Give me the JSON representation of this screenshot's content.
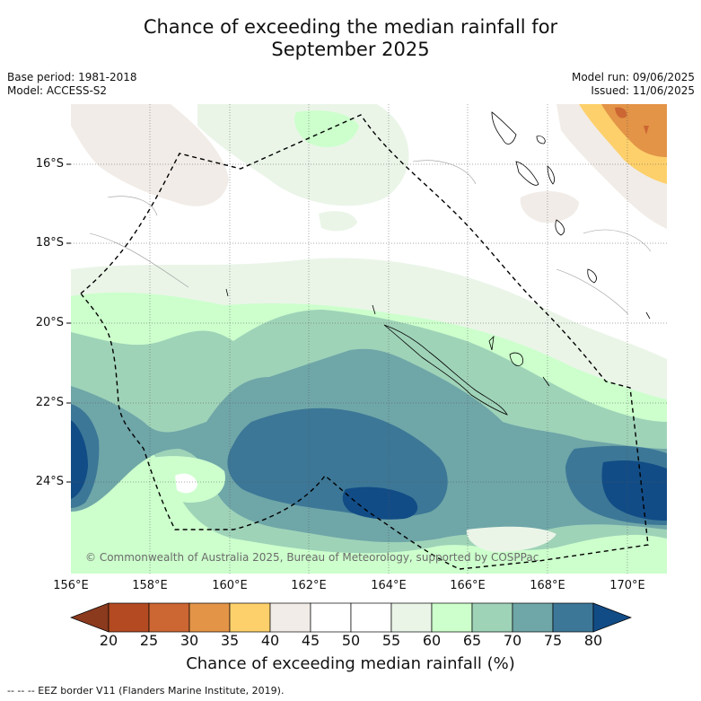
{
  "title_line1": "Chance of exceeding the median rainfall for",
  "title_line2": "September 2025",
  "meta_left": {
    "base_period": "Base period: 1981-2018",
    "model": "Model: ACCESS-S2"
  },
  "meta_right": {
    "model_run": "Model run: 09/06/2025",
    "issued": "Issued: 11/06/2025"
  },
  "latitude_labels": [
    "16°S",
    "18°S",
    "20°S",
    "22°S",
    "24°S"
  ],
  "longitude_labels": [
    "156°E",
    "158°E",
    "160°E",
    "162°E",
    "164°E",
    "166°E",
    "168°E",
    "170°E"
  ],
  "copyright": "© Commonwealth of Australia 2025, Bureau of Meteorology, supported by COSPPac",
  "colorbar": {
    "title": "Chance of exceeding median rainfall (%)",
    "ticks": [
      "20",
      "25",
      "30",
      "35",
      "40",
      "45",
      "50",
      "55",
      "60",
      "65",
      "70",
      "75",
      "80"
    ],
    "colors": [
      "#8b3a1e",
      "#b34a22",
      "#cc6633",
      "#e39447",
      "#fdd06b",
      "#f1ece7",
      "#ffffff",
      "#ffffff",
      "#eaf5e8",
      "#ccffcc",
      "#9fd3b8",
      "#6fa6a8",
      "#3c7797",
      "#124c86"
    ]
  },
  "footnote": "--  --  -- EEZ border V11 (Flanders Marine Institute, 2019)."
}
